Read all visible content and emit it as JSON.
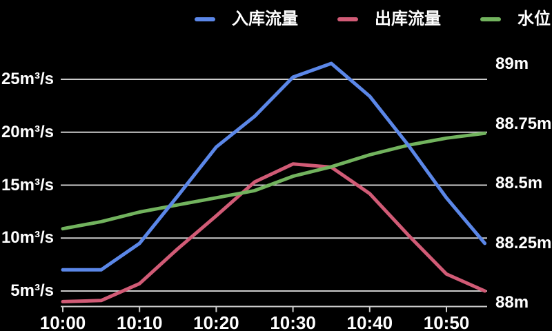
{
  "chart_data": {
    "type": "line",
    "title": "",
    "background_color": "#000000",
    "text_color": "#ffffff",
    "grid_color": "#cccccc",
    "grid": true,
    "legend_position": "top",
    "x": [
      "10:00",
      "10:05",
      "10:10",
      "10:15",
      "10:20",
      "10:25",
      "10:30",
      "10:35",
      "10:40",
      "10:45",
      "10:50",
      "10:55"
    ],
    "x_tick_labels": [
      "10:00",
      "10:10",
      "10:20",
      "10:30",
      "10:40",
      "10:50"
    ],
    "left_axis": {
      "unit": "m³/s",
      "tick_labels": [
        "5m³/s",
        "10m³/s",
        "15m³/s",
        "20m³/s",
        "25m³/s"
      ],
      "tick_values": [
        5,
        10,
        15,
        20,
        25
      ],
      "ylim": [
        3.5,
        27.5
      ]
    },
    "right_axis": {
      "unit": "m",
      "tick_labels": [
        "88m",
        "88.25m",
        "88.5m",
        "88.75m",
        "89m"
      ],
      "tick_values": [
        88,
        88.25,
        88.5,
        88.75,
        89
      ],
      "ylim": [
        87.98,
        89.1
      ]
    },
    "series": [
      {
        "name": "入库流量",
        "axis": "left",
        "color": "#5b87e8",
        "values": [
          7,
          7,
          9.5,
          14,
          18.6,
          21.5,
          25.2,
          26.5,
          23.4,
          18.8,
          13.8,
          9.5
        ]
      },
      {
        "name": "出库流量",
        "axis": "left",
        "color": "#d15b76",
        "values": [
          4,
          4.1,
          5.7,
          9,
          12.1,
          15.3,
          17,
          16.7,
          14.2,
          10.3,
          6.6,
          5
        ]
      },
      {
        "name": "水位",
        "axis": "right",
        "color": "#72b35e",
        "values": [
          88.31,
          88.34,
          88.38,
          88.41,
          88.44,
          88.47,
          88.53,
          88.57,
          88.62,
          88.66,
          88.69,
          88.71
        ]
      }
    ]
  }
}
